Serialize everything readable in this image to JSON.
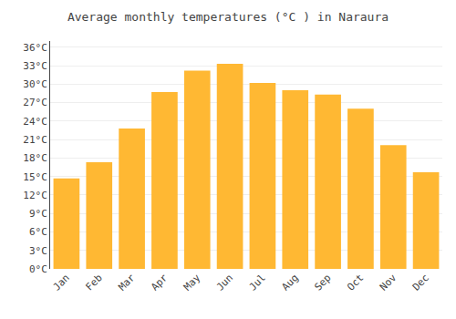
{
  "chart_data": {
    "type": "bar",
    "title": "Average monthly temperatures (°C ) in Naraura",
    "categories": [
      "Jan",
      "Feb",
      "Mar",
      "Apr",
      "May",
      "Jun",
      "Jul",
      "Aug",
      "Sep",
      "Oct",
      "Nov",
      "Dec"
    ],
    "values": [
      14.7,
      17.3,
      22.8,
      28.7,
      32.2,
      33.3,
      30.2,
      29.0,
      28.3,
      26.0,
      20.1,
      15.7
    ],
    "color": "#FFB833",
    "ylim": [
      0,
      37
    ],
    "yticks": [
      {
        "value": 0,
        "label": "0°C"
      },
      {
        "value": 3,
        "label": "3°C"
      },
      {
        "value": 6,
        "label": "6°C"
      },
      {
        "value": 9,
        "label": "9°C"
      },
      {
        "value": 12,
        "label": "12°C"
      },
      {
        "value": 15,
        "label": "15°C"
      },
      {
        "value": 18,
        "label": "18°C"
      },
      {
        "value": 21,
        "label": "21°C"
      },
      {
        "value": 24,
        "label": "24°C"
      },
      {
        "value": 27,
        "label": "27°C"
      },
      {
        "value": 30,
        "label": "30°C"
      },
      {
        "value": 33,
        "label": "33°C"
      },
      {
        "value": 36,
        "label": "36°C"
      }
    ],
    "grid": true
  }
}
